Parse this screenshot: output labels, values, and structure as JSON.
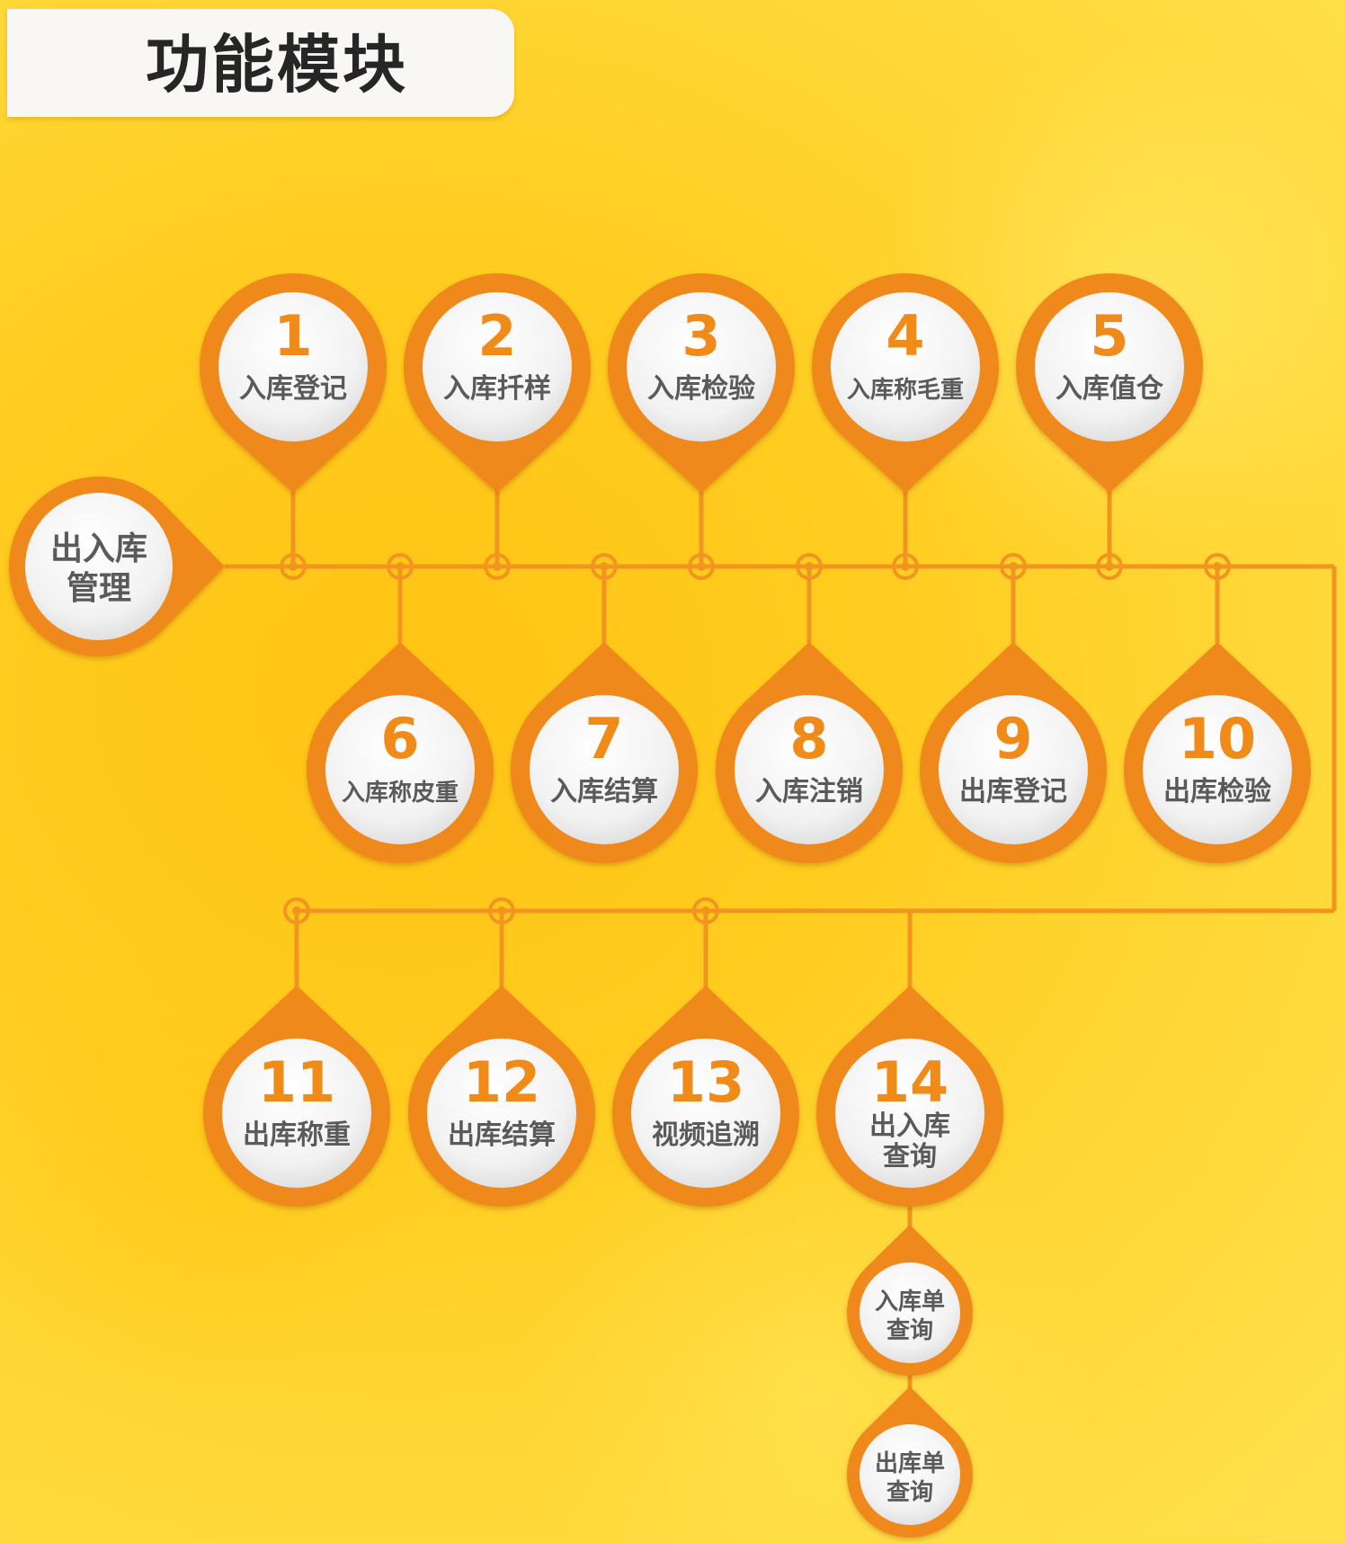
{
  "title": "功能模块",
  "colors": {
    "accent": "#f0891a",
    "line": "#f29420",
    "label": "#5a5a5a",
    "number": "#f08a18",
    "disc": "#f7f7f7"
  },
  "root": {
    "label_lines": [
      "出入库",
      "管理"
    ]
  },
  "modules": [
    {
      "number": "1",
      "label_lines": [
        "入库登记"
      ]
    },
    {
      "number": "2",
      "label_lines": [
        "入库扦样"
      ]
    },
    {
      "number": "3",
      "label_lines": [
        "入库检验"
      ]
    },
    {
      "number": "4",
      "label_lines": [
        "入库称毛重"
      ]
    },
    {
      "number": "5",
      "label_lines": [
        "入库值仓"
      ]
    },
    {
      "number": "6",
      "label_lines": [
        "入库称皮重"
      ]
    },
    {
      "number": "7",
      "label_lines": [
        "入库结算"
      ]
    },
    {
      "number": "8",
      "label_lines": [
        "入库注销"
      ]
    },
    {
      "number": "9",
      "label_lines": [
        "出库登记"
      ]
    },
    {
      "number": "10",
      "label_lines": [
        "出库检验"
      ]
    },
    {
      "number": "11",
      "label_lines": [
        "出库称重"
      ]
    },
    {
      "number": "12",
      "label_lines": [
        "出库结算"
      ]
    },
    {
      "number": "13",
      "label_lines": [
        "视频追溯"
      ]
    },
    {
      "number": "14",
      "label_lines": [
        "出入库",
        "查询"
      ]
    }
  ],
  "sub_modules": [
    {
      "label_lines": [
        "入库单",
        "查询"
      ]
    },
    {
      "label_lines": [
        "出库单",
        "查询"
      ]
    }
  ]
}
